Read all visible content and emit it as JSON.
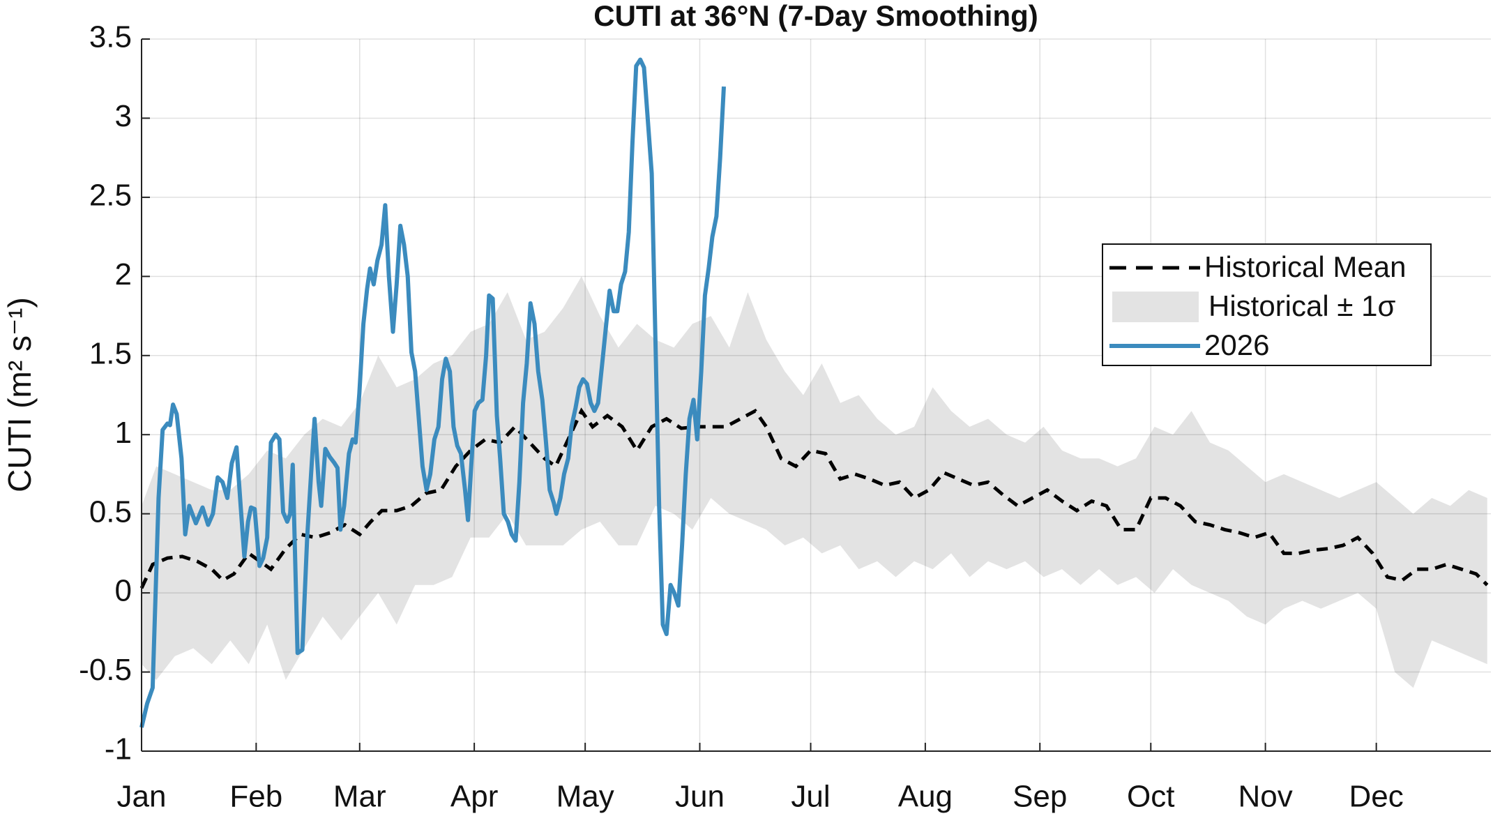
{
  "chart_data": {
    "type": "line",
    "title": "CUTI at 36°N (7-Day Smoothing)",
    "ylabel": "CUTI  (m² s⁻¹)",
    "xlim": [
      1,
      366
    ],
    "xticks": [
      {
        "value": 1,
        "label": "Jan"
      },
      {
        "value": 32,
        "label": "Feb"
      },
      {
        "value": 60,
        "label": "Mar"
      },
      {
        "value": 91,
        "label": "Apr"
      },
      {
        "value": 121,
        "label": "May"
      },
      {
        "value": 152,
        "label": "Jun"
      },
      {
        "value": 182,
        "label": "Jul"
      },
      {
        "value": 213,
        "label": "Aug"
      },
      {
        "value": 244,
        "label": "Sep"
      },
      {
        "value": 274,
        "label": "Oct"
      },
      {
        "value": 305,
        "label": "Nov"
      },
      {
        "value": 335,
        "label": "Dec"
      }
    ],
    "ylim": [
      -1,
      3.5
    ],
    "yticks": [
      -1,
      -0.5,
      0,
      0.5,
      1,
      1.5,
      2,
      2.5,
      3,
      3.5
    ],
    "grid": true,
    "legend": "right",
    "series": [
      {
        "name": "Historical Mean",
        "color": "#000000",
        "style": "dashed",
        "x": [
          1,
          4,
          8,
          12,
          16,
          20,
          23,
          26,
          30,
          33,
          36,
          40,
          44,
          48,
          52,
          56,
          60,
          63,
          66,
          70,
          74,
          78,
          82,
          86,
          90,
          94,
          98,
          102,
          106,
          110,
          113,
          117,
          120,
          123,
          127,
          131,
          135,
          139,
          143,
          147,
          151,
          155,
          159,
          163,
          167,
          170,
          174,
          178,
          182,
          186,
          190,
          194,
          198,
          202,
          206,
          210,
          214,
          218,
          222,
          226,
          230,
          234,
          238,
          242,
          246,
          250,
          254,
          258,
          262,
          266,
          270,
          274,
          278,
          282,
          286,
          290,
          294,
          298,
          302,
          306,
          310,
          314,
          318,
          322,
          326,
          330,
          334,
          338,
          342,
          346,
          350,
          354,
          358,
          362,
          365
        ],
        "values": [
          0.03,
          0.18,
          0.22,
          0.23,
          0.2,
          0.15,
          0.08,
          0.12,
          0.25,
          0.2,
          0.15,
          0.28,
          0.37,
          0.35,
          0.38,
          0.43,
          0.37,
          0.45,
          0.52,
          0.52,
          0.55,
          0.63,
          0.65,
          0.8,
          0.9,
          0.97,
          0.95,
          1.05,
          0.95,
          0.85,
          0.8,
          1.0,
          1.15,
          1.05,
          1.12,
          1.05,
          0.9,
          1.05,
          1.1,
          1.04,
          1.05,
          1.05,
          1.05,
          1.1,
          1.15,
          1.05,
          0.85,
          0.8,
          0.9,
          0.88,
          0.72,
          0.75,
          0.72,
          0.68,
          0.7,
          0.6,
          0.65,
          0.76,
          0.72,
          0.68,
          0.7,
          0.62,
          0.55,
          0.6,
          0.65,
          0.58,
          0.52,
          0.58,
          0.55,
          0.4,
          0.4,
          0.6,
          0.6,
          0.55,
          0.45,
          0.43,
          0.4,
          0.38,
          0.35,
          0.38,
          0.25,
          0.25,
          0.27,
          0.28,
          0.3,
          0.35,
          0.25,
          0.1,
          0.08,
          0.15,
          0.15,
          0.18,
          0.15,
          0.12,
          0.05
        ]
      },
      {
        "name": "Historical ± 1σ",
        "color": "#e3e3e3",
        "style": "band",
        "x": [
          1,
          5,
          10,
          15,
          20,
          25,
          30,
          35,
          40,
          45,
          50,
          55,
          60,
          65,
          70,
          75,
          80,
          85,
          90,
          95,
          100,
          105,
          110,
          115,
          120,
          125,
          130,
          135,
          140,
          145,
          150,
          155,
          160,
          165,
          170,
          175,
          180,
          185,
          190,
          195,
          200,
          205,
          210,
          215,
          220,
          225,
          230,
          235,
          240,
          245,
          250,
          255,
          260,
          265,
          270,
          275,
          280,
          285,
          290,
          295,
          300,
          305,
          310,
          315,
          320,
          325,
          330,
          335,
          340,
          345,
          350,
          355,
          360,
          365
        ],
        "lower": [
          -0.45,
          -0.55,
          -0.4,
          -0.35,
          -0.45,
          -0.3,
          -0.45,
          -0.2,
          -0.55,
          -0.35,
          -0.15,
          -0.3,
          -0.15,
          0.0,
          -0.2,
          0.05,
          0.05,
          0.1,
          0.35,
          0.35,
          0.5,
          0.3,
          0.3,
          0.3,
          0.4,
          0.45,
          0.3,
          0.3,
          0.55,
          0.5,
          0.4,
          0.6,
          0.5,
          0.45,
          0.4,
          0.3,
          0.35,
          0.25,
          0.3,
          0.15,
          0.2,
          0.1,
          0.2,
          0.15,
          0.25,
          0.1,
          0.2,
          0.15,
          0.2,
          0.1,
          0.15,
          0.05,
          0.15,
          0.05,
          0.1,
          0.0,
          0.15,
          0.05,
          0.0,
          -0.05,
          -0.15,
          -0.2,
          -0.1,
          -0.05,
          -0.1,
          -0.05,
          0.0,
          -0.1,
          -0.5,
          -0.6,
          -0.3,
          -0.35,
          -0.4,
          -0.45
        ],
        "upper": [
          0.55,
          0.8,
          0.75,
          0.7,
          0.65,
          0.65,
          0.75,
          0.9,
          0.85,
          1.0,
          1.1,
          1.05,
          1.2,
          1.5,
          1.3,
          1.35,
          1.45,
          1.5,
          1.65,
          1.7,
          1.9,
          1.6,
          1.65,
          1.8,
          2.0,
          1.75,
          1.55,
          1.7,
          1.6,
          1.55,
          1.7,
          1.75,
          1.55,
          1.9,
          1.6,
          1.4,
          1.25,
          1.45,
          1.2,
          1.25,
          1.1,
          1.0,
          1.05,
          1.3,
          1.15,
          1.05,
          1.1,
          1.0,
          0.95,
          1.05,
          0.9,
          0.85,
          0.85,
          0.8,
          0.85,
          1.05,
          1.0,
          1.15,
          0.95,
          0.9,
          0.8,
          0.7,
          0.75,
          0.7,
          0.65,
          0.6,
          0.65,
          0.7,
          0.6,
          0.5,
          0.6,
          0.55,
          0.65,
          0.6
        ]
      },
      {
        "name": "2026",
        "color": "#3b8bbe",
        "style": "solid",
        "x": [
          1,
          2.5,
          4,
          5.6,
          6.7,
          8,
          8.7,
          9.5,
          10.5,
          11.8,
          12.8,
          13.9,
          15.7,
          17.5,
          19,
          20.3,
          21.6,
          22.9,
          24.2,
          25.4,
          26.7,
          27.8,
          28.8,
          29.8,
          30.6,
          31.6,
          32.9,
          33.9,
          35,
          36,
          37.3,
          38.3,
          39.3,
          40.4,
          41.2,
          41.9,
          43.2,
          44.5,
          45.8,
          46.8,
          47.8,
          48.9,
          49.6,
          50.7,
          51.9,
          53.2,
          54,
          54.8,
          55.8,
          57.1,
          58.1,
          58.9,
          59.9,
          61,
          62,
          62.8,
          63.8,
          64.8,
          65.9,
          66.9,
          67.9,
          69,
          70,
          71,
          72,
          73,
          74,
          75,
          76,
          77,
          78.1,
          79.1,
          80.2,
          81.3,
          82.3,
          83.3,
          84.4,
          85.4,
          86.4,
          87.4,
          88.5,
          89.3,
          90.3,
          91.1,
          92.1,
          93.2,
          94.2,
          95,
          96,
          97.1,
          98,
          99,
          100.1,
          101.1,
          102.2,
          103.2,
          104.2,
          105.2,
          106.2,
          107.3,
          108.3,
          109.4,
          110.4,
          111.4,
          112.5,
          113.2,
          114.3,
          115.3,
          116.4,
          117.3,
          118.4,
          119.4,
          120.4,
          121.5,
          122.5,
          123.5,
          124.5,
          125.6,
          126.6,
          127.6,
          128.7,
          129.7,
          130.7,
          131.8,
          132.8,
          133.8,
          134.8,
          135.9,
          136.9,
          137.9,
          139,
          140,
          141,
          142,
          143,
          144.1,
          145.1,
          146.2,
          147.2,
          148.2,
          149.2,
          150.3,
          151.3,
          152.4,
          153.4,
          154.4,
          155.4,
          156.5,
          157.5,
          158.5
        ],
        "values": [
          -0.85,
          -0.7,
          -0.6,
          0.6,
          1.03,
          1.07,
          1.06,
          1.19,
          1.13,
          0.85,
          0.37,
          0.55,
          0.44,
          0.54,
          0.43,
          0.5,
          0.73,
          0.7,
          0.6,
          0.82,
          0.92,
          0.55,
          0.23,
          0.45,
          0.54,
          0.53,
          0.17,
          0.22,
          0.35,
          0.95,
          1.0,
          0.97,
          0.51,
          0.45,
          0.5,
          0.81,
          -0.38,
          -0.36,
          0.35,
          0.73,
          1.1,
          0.7,
          0.55,
          0.91,
          0.86,
          0.82,
          0.79,
          0.4,
          0.55,
          0.88,
          0.97,
          0.95,
          1.26,
          1.7,
          1.92,
          2.05,
          1.95,
          2.1,
          2.2,
          2.45,
          2.0,
          1.65,
          1.95,
          2.32,
          2.2,
          2.0,
          1.52,
          1.4,
          1.1,
          0.8,
          0.65,
          0.75,
          0.97,
          1.05,
          1.35,
          1.48,
          1.4,
          1.05,
          0.93,
          0.88,
          0.65,
          0.46,
          0.85,
          1.15,
          1.2,
          1.22,
          1.5,
          1.88,
          1.86,
          1.12,
          0.85,
          0.5,
          0.45,
          0.37,
          0.33,
          0.7,
          1.2,
          1.45,
          1.83,
          1.7,
          1.4,
          1.22,
          0.95,
          0.65,
          0.57,
          0.5,
          0.6,
          0.75,
          0.85,
          1.05,
          1.17,
          1.3,
          1.35,
          1.32,
          1.2,
          1.15,
          1.2,
          1.45,
          1.68,
          1.91,
          1.78,
          1.78,
          1.95,
          2.03,
          2.28,
          2.85,
          3.33,
          3.37,
          3.32,
          3.0,
          2.65,
          1.6,
          0.55,
          -0.2,
          -0.26,
          0.05,
          0.0,
          -0.08,
          0.3,
          0.75,
          1.1,
          1.22,
          0.97,
          1.4,
          1.88,
          2.05,
          2.25,
          2.38,
          2.75,
          3.2
        ]
      }
    ]
  }
}
